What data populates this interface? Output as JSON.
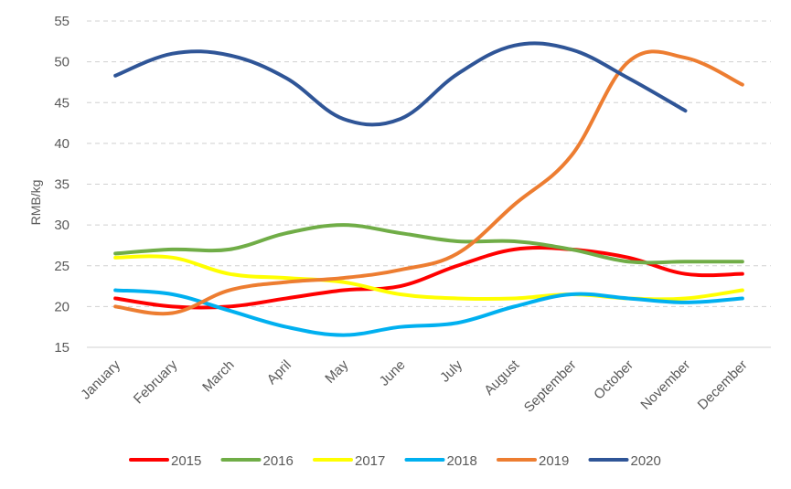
{
  "chart_data": {
    "type": "line",
    "title": "",
    "xlabel": "",
    "ylabel": "RMB/kg",
    "ylim": [
      15,
      55
    ],
    "yticks": [
      15,
      20,
      25,
      30,
      35,
      40,
      45,
      50,
      55
    ],
    "grid": true,
    "legend_position": "bottom",
    "categories": [
      "January",
      "February",
      "March",
      "April",
      "May",
      "June",
      "July",
      "August",
      "September",
      "October",
      "November",
      "December"
    ],
    "series": [
      {
        "name": "2015",
        "color": "#ff0000",
        "values": [
          21,
          20,
          20,
          21,
          22,
          22.5,
          25,
          27,
          27,
          26,
          24,
          24
        ]
      },
      {
        "name": "2016",
        "color": "#70ad47",
        "values": [
          26.5,
          27,
          27,
          29,
          30,
          29,
          28,
          28,
          27,
          25.5,
          25.5,
          25.5
        ]
      },
      {
        "name": "2017",
        "color": "#ffff00",
        "values": [
          26,
          26,
          24,
          23.5,
          23,
          21.5,
          21,
          21,
          21.5,
          21,
          21,
          22
        ]
      },
      {
        "name": "2018",
        "color": "#00b0f0",
        "values": [
          22,
          21.5,
          19.5,
          17.5,
          16.5,
          17.5,
          18,
          20,
          21.5,
          21,
          20.5,
          21
        ]
      },
      {
        "name": "2019",
        "color": "#ed7d31",
        "values": [
          20,
          19.2,
          22,
          23,
          23.5,
          24.5,
          26.5,
          32.5,
          38.5,
          50,
          50.5,
          47.2
        ]
      },
      {
        "name": "2020",
        "color": "#2f5597",
        "values": [
          48.3,
          51,
          50.8,
          48,
          43,
          43,
          48.5,
          52,
          51.5,
          48,
          44,
          null
        ]
      }
    ]
  }
}
